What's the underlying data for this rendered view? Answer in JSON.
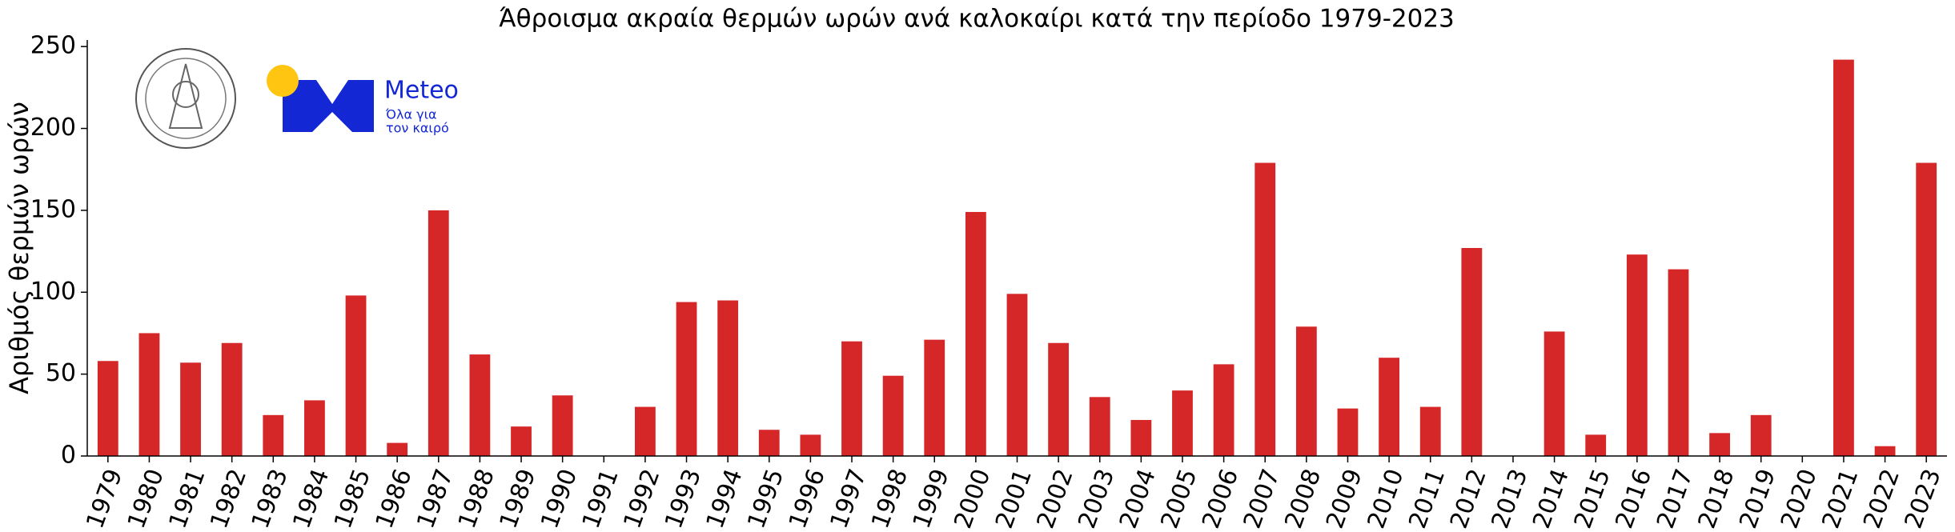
{
  "chart_data": {
    "type": "bar",
    "title": "Άθροισμα ακραία θερμών ωρών ανά καλοκαίρι κατά την περίοδο 1979-2023",
    "ylabel": "Αριθμός θερμών ωρών",
    "logo_text": [
      "Meteo",
      "Όλα για",
      "τον καιρό"
    ],
    "categories": [
      "1979",
      "1980",
      "1981",
      "1982",
      "1983",
      "1984",
      "1985",
      "1986",
      "1987",
      "1988",
      "1989",
      "1990",
      "1991",
      "1992",
      "1993",
      "1994",
      "1995",
      "1996",
      "1997",
      "1998",
      "1999",
      "2000",
      "2001",
      "2002",
      "2003",
      "2004",
      "2005",
      "2006",
      "2007",
      "2008",
      "2009",
      "2010",
      "2011",
      "2012",
      "2013",
      "2014",
      "2015",
      "2016",
      "2017",
      "2018",
      "2019",
      "2020",
      "2021",
      "2022",
      "2023"
    ],
    "values": [
      58,
      75,
      57,
      69,
      25,
      34,
      98,
      8,
      150,
      62,
      18,
      37,
      0,
      30,
      94,
      95,
      16,
      13,
      70,
      49,
      71,
      149,
      99,
      69,
      36,
      22,
      40,
      56,
      179,
      79,
      29,
      60,
      30,
      127,
      0,
      76,
      13,
      123,
      114,
      14,
      25,
      0,
      242,
      6,
      179
    ],
    "color": "#d62728",
    "ylim": [
      0,
      254
    ],
    "yticks": [
      0,
      50,
      100,
      150,
      200,
      250
    ],
    "grid": false
  }
}
